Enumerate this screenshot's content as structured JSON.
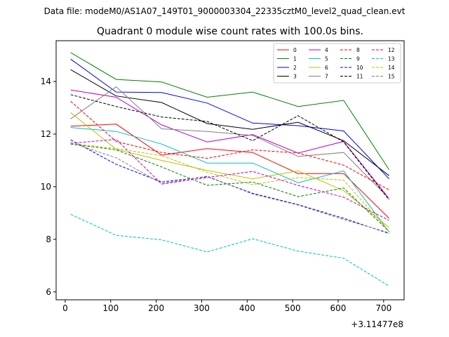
{
  "figure": {
    "suptitle": "Data file: modeM0/AS1A07_149T01_9000003304_22335cztM0_level2_quad_clean.evt"
  },
  "chart_data": {
    "type": "line",
    "title": "Quadrant 0 module wise count rates with 100.0s bins.",
    "xlabel": "",
    "ylabel": "",
    "x_offset_label": "+3.11477e8",
    "xlim": [
      -20,
      745
    ],
    "ylim": [
      5.7,
      15.55
    ],
    "xticks": [
      0,
      100,
      200,
      300,
      400,
      500,
      600,
      700
    ],
    "yticks": [
      6,
      8,
      10,
      12,
      14
    ],
    "grid": false,
    "legend_position": "top-right",
    "legend_columns": 4,
    "x": [
      12,
      112,
      212,
      312,
      412,
      512,
      612,
      712
    ],
    "series": [
      {
        "name": "0",
        "color": "#ff0000",
        "style": "solid",
        "values": [
          12.3,
          12.38,
          11.2,
          11.45,
          11.3,
          10.5,
          10.5,
          8.8
        ]
      },
      {
        "name": "1",
        "color": "#008000",
        "style": "solid",
        "values": [
          15.1,
          14.08,
          13.98,
          13.4,
          13.6,
          13.05,
          13.28,
          10.65
        ]
      },
      {
        "name": "2",
        "color": "#0000ff",
        "style": "solid",
        "values": [
          14.85,
          13.6,
          13.58,
          13.18,
          12.42,
          12.32,
          12.12,
          10.3
        ]
      },
      {
        "name": "3",
        "color": "#000000",
        "style": "solid",
        "values": [
          14.45,
          13.45,
          13.2,
          12.4,
          12.18,
          12.45,
          11.75,
          10.42
        ]
      },
      {
        "name": "4",
        "color": "#bf00bf",
        "style": "solid",
        "values": [
          13.68,
          13.4,
          12.35,
          11.7,
          11.98,
          11.28,
          11.72,
          9.55
        ]
      },
      {
        "name": "5",
        "color": "#00bfbf",
        "style": "solid",
        "values": [
          12.25,
          12.1,
          11.62,
          10.9,
          10.9,
          10.15,
          10.6,
          8.28
        ]
      },
      {
        "name": "6",
        "color": "#bfbf00",
        "style": "solid",
        "values": [
          12.82,
          11.42,
          11.0,
          10.62,
          10.3,
          10.6,
          9.85,
          8.45
        ]
      },
      {
        "name": "7",
        "color": "#808080",
        "style": "solid",
        "values": [
          12.58,
          13.8,
          12.2,
          12.1,
          11.95,
          11.15,
          11.3,
          9.55
        ]
      },
      {
        "name": "8",
        "color": "#ff0000",
        "style": "dashed",
        "values": [
          13.25,
          11.72,
          11.3,
          11.08,
          11.4,
          11.28,
          10.82,
          9.88
        ]
      },
      {
        "name": "9",
        "color": "#008000",
        "style": "dashed",
        "values": [
          11.62,
          11.4,
          10.75,
          10.05,
          10.18,
          9.62,
          9.95,
          8.3
        ]
      },
      {
        "name": "10",
        "color": "#0000ff",
        "style": "dashed",
        "values": [
          11.78,
          10.85,
          10.18,
          10.38,
          9.75,
          9.32,
          8.8,
          8.22
        ]
      },
      {
        "name": "11",
        "color": "#000000",
        "style": "dashed",
        "values": [
          13.5,
          13.05,
          12.65,
          12.48,
          11.75,
          12.7,
          11.7,
          9.5
        ]
      },
      {
        "name": "12",
        "color": "#bf00bf",
        "style": "dashed",
        "values": [
          11.65,
          11.8,
          10.1,
          10.35,
          10.58,
          10.05,
          9.6,
          8.72
        ]
      },
      {
        "name": "13",
        "color": "#00bfbf",
        "style": "dashed",
        "values": [
          8.95,
          8.15,
          7.98,
          7.52,
          8.02,
          7.55,
          7.28,
          6.22
        ]
      },
      {
        "name": "14",
        "color": "#bfbf00",
        "style": "dashed",
        "values": [
          11.65,
          11.45,
          11.18,
          10.55,
          10.08,
          10.35,
          10.25,
          8.3
        ]
      },
      {
        "name": "15",
        "color": "#808080",
        "style": "dashed",
        "values": [
          11.68,
          11.1,
          10.12,
          10.4,
          9.72,
          9.3,
          8.75,
          8.25
        ]
      }
    ]
  }
}
